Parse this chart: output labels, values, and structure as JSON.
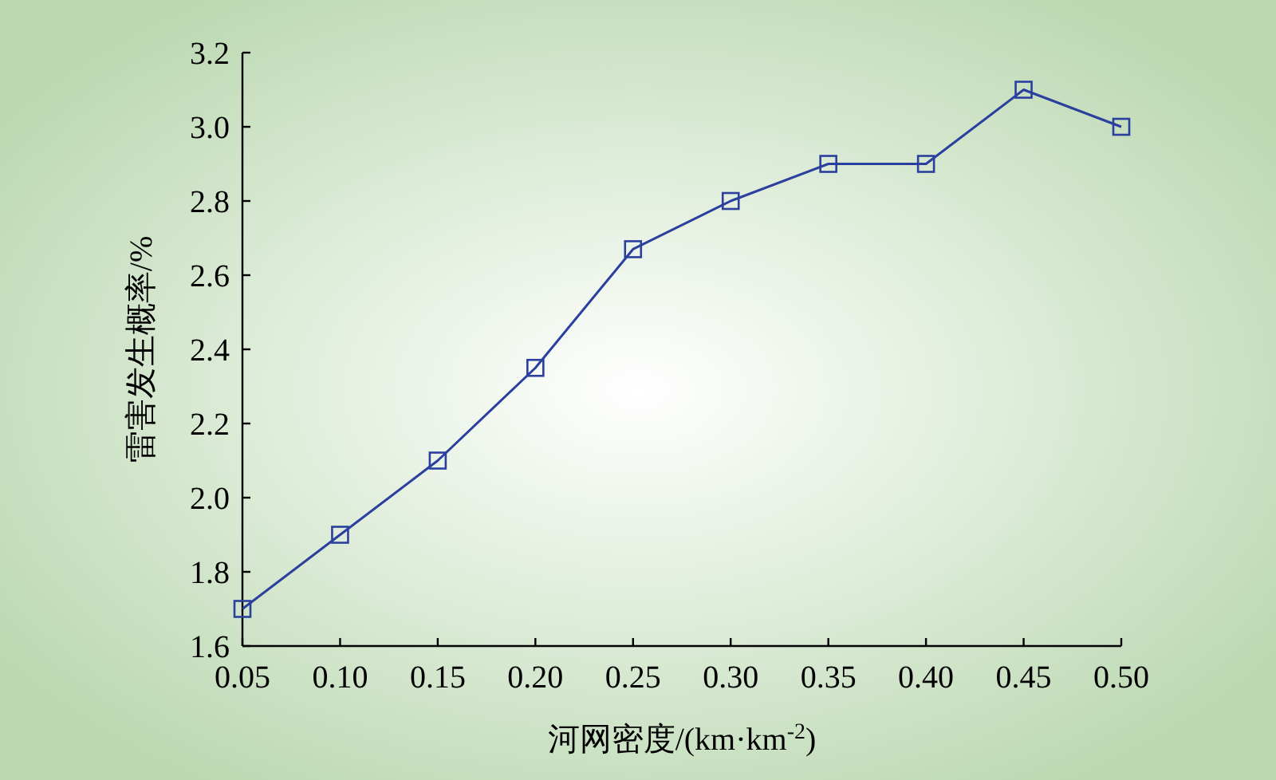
{
  "chart_data": {
    "type": "line",
    "xlabel": "河网密度/(km·km$^{-2}$)",
    "ylabel": "雷害发生概率/%",
    "x": [
      0.05,
      0.1,
      0.15,
      0.2,
      0.25,
      0.3,
      0.35,
      0.4,
      0.45,
      0.5
    ],
    "series": [
      {
        "color": "#2b3f9e",
        "values": [
          1.7,
          1.9,
          2.1,
          2.35,
          2.67,
          2.8,
          2.9,
          2.9,
          3.1,
          3.0
        ]
      }
    ],
    "xlim": [
      0.05,
      0.5
    ],
    "ylim": [
      1.6,
      3.2
    ],
    "xticks": [
      {
        "value": 0.05,
        "label": "0.05"
      },
      {
        "value": 0.1,
        "label": "0.10"
      },
      {
        "value": 0.15,
        "label": "0.15"
      },
      {
        "value": 0.2,
        "label": "0.20"
      },
      {
        "value": 0.25,
        "label": "0.25"
      },
      {
        "value": 0.3,
        "label": "0.30"
      },
      {
        "value": 0.35,
        "label": "0.35"
      },
      {
        "value": 0.4,
        "label": "0.40"
      },
      {
        "value": 0.45,
        "label": "0.45"
      },
      {
        "value": 0.5,
        "label": "0.50"
      }
    ],
    "yticks": [
      {
        "value": 1.6,
        "label": "1.6"
      },
      {
        "value": 1.8,
        "label": "1.8"
      },
      {
        "value": 2.0,
        "label": "2.0"
      },
      {
        "value": 2.2,
        "label": "2.2"
      },
      {
        "value": 2.4,
        "label": "2.4"
      },
      {
        "value": 2.6,
        "label": "2.6"
      },
      {
        "value": 2.8,
        "label": "2.8"
      },
      {
        "value": 3.0,
        "label": "3.0"
      },
      {
        "value": 3.2,
        "label": "3.2"
      }
    ],
    "marker": "square",
    "line_style": "solid",
    "grid": false
  }
}
